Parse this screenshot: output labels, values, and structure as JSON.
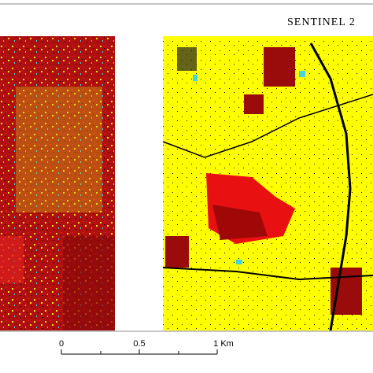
{
  "title": "SENTINEL 2",
  "scale_bar": {
    "labels": [
      "0",
      "0.5",
      "1 Km"
    ]
  }
}
